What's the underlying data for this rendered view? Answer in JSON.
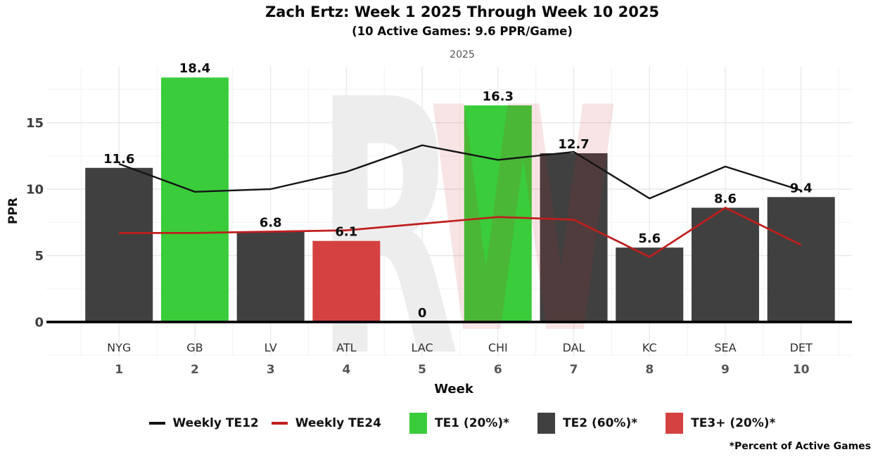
{
  "header": {
    "title": "Zach Ertz: Week 1 2025 Through Week 10 2025",
    "subtitle": "(10 Active Games: 9.6 PPR/Game)",
    "facet_label": "2025"
  },
  "chart_data": {
    "type": "bar",
    "title": "Zach Ertz: Week 1 2025 Through Week 10 2025",
    "subtitle": "(10 Active Games: 9.6 PPR/Game)",
    "facet": "2025",
    "xlabel": "Week",
    "ylabel": "PPR",
    "ylim": [
      -2.5,
      19.2
    ],
    "yticks": [
      0,
      5,
      10,
      15
    ],
    "grid": "on",
    "weeks": [
      1,
      2,
      3,
      4,
      5,
      6,
      7,
      8,
      9,
      10
    ],
    "opponents": [
      "NYG",
      "GB",
      "LV",
      "ATL",
      "LAC",
      "CHI",
      "DAL",
      "KC",
      "SEA",
      "DET"
    ],
    "bars": {
      "name": "Weekly PPR",
      "values": [
        11.6,
        18.4,
        6.8,
        6.1,
        0,
        16.3,
        12.7,
        5.6,
        8.6,
        9.4
      ],
      "tiers": [
        "TE2",
        "TE1",
        "TE2",
        "TE3+",
        "TE3+",
        "TE1",
        "TE2",
        "TE2",
        "TE2",
        "TE2"
      ]
    },
    "series": [
      {
        "name": "Weekly TE12",
        "color_key": "te12_line",
        "values": [
          11.9,
          9.8,
          10.0,
          11.3,
          13.3,
          12.2,
          12.8,
          9.3,
          11.7,
          9.9
        ]
      },
      {
        "name": "Weekly TE24",
        "color_key": "te24_line",
        "values": [
          6.7,
          6.7,
          6.8,
          6.9,
          7.4,
          7.9,
          7.7,
          4.9,
          8.6,
          5.8
        ]
      }
    ],
    "legend_position": "bottom"
  },
  "legend": {
    "items": [
      {
        "type": "line",
        "color_key": "te12_line",
        "label": "Weekly TE12"
      },
      {
        "type": "line",
        "color_key": "te24_line",
        "label": "Weekly TE24"
      },
      {
        "type": "box",
        "color_key": "te1",
        "label": "TE1 (20%)*"
      },
      {
        "type": "box",
        "color_key": "te2",
        "label": "TE2 (60%)*"
      },
      {
        "type": "box",
        "color_key": "te3",
        "label": "TE3+ (20%)*"
      }
    ]
  },
  "footer": {
    "note": "*Percent of Active Games"
  },
  "watermark": {
    "letter1": "R",
    "letter2": "W"
  },
  "colors": {
    "te1": "#3ACC3A",
    "te2": "#404040",
    "te3": "#D54141",
    "te12_line": "#141414",
    "te24_line": "#C01E1E",
    "watermark_gray": "#ededed",
    "watermark_red": "rgba(200,30,30,0.12)",
    "grid_major": "#e7e7e7",
    "grid_minor": "#f4f4f4",
    "axis_text": "#3d3d3d"
  }
}
